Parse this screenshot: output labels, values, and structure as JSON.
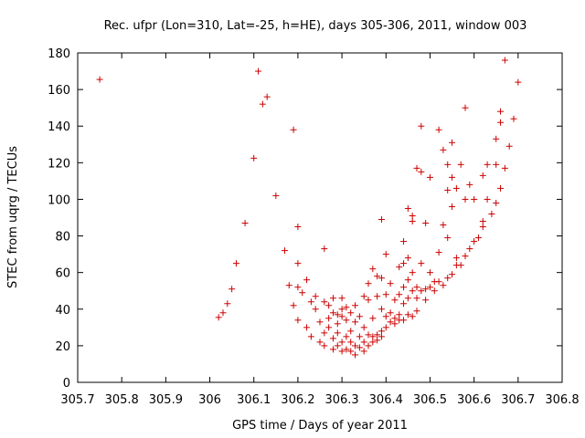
{
  "chart_data": {
    "type": "scatter",
    "title": "Rec. ufpr (Lon=310, Lat=-25, h=HE), days 305-306, 2011, window 003",
    "xlabel": "GPS time / Days of year 2011",
    "ylabel": "STEC from uqrg / TECUs",
    "xlim": [
      305.7,
      306.8
    ],
    "ylim": [
      0,
      180
    ],
    "xticks": [
      "305.7",
      "305.8",
      "305.9",
      "306",
      "306.1",
      "306.2",
      "306.3",
      "306.4",
      "306.5",
      "306.6",
      "306.7",
      "306.8"
    ],
    "yticks": [
      "0",
      "20",
      "40",
      "60",
      "80",
      "100",
      "120",
      "140",
      "160",
      "180"
    ],
    "grid": false,
    "marker": "+",
    "color": "#cc0000",
    "points": [
      [
        305.75,
        165.5
      ],
      [
        306.11,
        170
      ],
      [
        306.12,
        152
      ],
      [
        306.13,
        156
      ],
      [
        306.15,
        102
      ],
      [
        306.1,
        122.5
      ],
      [
        306.08,
        87
      ],
      [
        306.06,
        65
      ],
      [
        306.05,
        51
      ],
      [
        306.04,
        43
      ],
      [
        306.03,
        38
      ],
      [
        306.02,
        35.5
      ],
      [
        306.17,
        72
      ],
      [
        306.18,
        53
      ],
      [
        306.19,
        138
      ],
      [
        306.19,
        42
      ],
      [
        306.2,
        34
      ],
      [
        306.2,
        85
      ],
      [
        306.2,
        65
      ],
      [
        306.2,
        52
      ],
      [
        306.21,
        49
      ],
      [
        306.22,
        56
      ],
      [
        306.22,
        30
      ],
      [
        306.23,
        44
      ],
      [
        306.23,
        25
      ],
      [
        306.24,
        47
      ],
      [
        306.24,
        40
      ],
      [
        306.25,
        33
      ],
      [
        306.25,
        22
      ],
      [
        306.26,
        73
      ],
      [
        306.26,
        44
      ],
      [
        306.26,
        27
      ],
      [
        306.26,
        20
      ],
      [
        306.27,
        42
      ],
      [
        306.27,
        35
      ],
      [
        306.27,
        30
      ],
      [
        306.28,
        46
      ],
      [
        306.28,
        38
      ],
      [
        306.28,
        24
      ],
      [
        306.28,
        18
      ],
      [
        306.29,
        37
      ],
      [
        306.29,
        32
      ],
      [
        306.29,
        27
      ],
      [
        306.29,
        20
      ],
      [
        306.3,
        46
      ],
      [
        306.3,
        40
      ],
      [
        306.3,
        36
      ],
      [
        306.3,
        22
      ],
      [
        306.3,
        17
      ],
      [
        306.31,
        41
      ],
      [
        306.31,
        34
      ],
      [
        306.31,
        25
      ],
      [
        306.31,
        18
      ],
      [
        306.32,
        38
      ],
      [
        306.32,
        28
      ],
      [
        306.32,
        22
      ],
      [
        306.32,
        17
      ],
      [
        306.33,
        42
      ],
      [
        306.33,
        33
      ],
      [
        306.33,
        20
      ],
      [
        306.33,
        15
      ],
      [
        306.34,
        36
      ],
      [
        306.34,
        25
      ],
      [
        306.34,
        19
      ],
      [
        306.35,
        47
      ],
      [
        306.35,
        30
      ],
      [
        306.35,
        22
      ],
      [
        306.35,
        17
      ],
      [
        306.36,
        54
      ],
      [
        306.36,
        45
      ],
      [
        306.36,
        26
      ],
      [
        306.36,
        20
      ],
      [
        306.37,
        62
      ],
      [
        306.37,
        35
      ],
      [
        306.37,
        25
      ],
      [
        306.37,
        22
      ],
      [
        306.38,
        58
      ],
      [
        306.38,
        47
      ],
      [
        306.38,
        26
      ],
      [
        306.38,
        23
      ],
      [
        306.39,
        89
      ],
      [
        306.39,
        57
      ],
      [
        306.39,
        40
      ],
      [
        306.39,
        28
      ],
      [
        306.39,
        25
      ],
      [
        306.4,
        70
      ],
      [
        306.4,
        48
      ],
      [
        306.4,
        36
      ],
      [
        306.4,
        30
      ],
      [
        306.41,
        54
      ],
      [
        306.41,
        38
      ],
      [
        306.41,
        33
      ],
      [
        306.42,
        45
      ],
      [
        306.42,
        35
      ],
      [
        306.42,
        32
      ],
      [
        306.43,
        63
      ],
      [
        306.43,
        48
      ],
      [
        306.43,
        37
      ],
      [
        306.43,
        34
      ],
      [
        306.44,
        77
      ],
      [
        306.44,
        65
      ],
      [
        306.44,
        52
      ],
      [
        306.44,
        43
      ],
      [
        306.44,
        34
      ],
      [
        306.45,
        95
      ],
      [
        306.45,
        68
      ],
      [
        306.45,
        56
      ],
      [
        306.45,
        46
      ],
      [
        306.45,
        37
      ],
      [
        306.46,
        91
      ],
      [
        306.46,
        88
      ],
      [
        306.46,
        60
      ],
      [
        306.46,
        50
      ],
      [
        306.46,
        36
      ],
      [
        306.47,
        117
      ],
      [
        306.47,
        52
      ],
      [
        306.47,
        46
      ],
      [
        306.47,
        39
      ],
      [
        306.48,
        140
      ],
      [
        306.48,
        115
      ],
      [
        306.48,
        65
      ],
      [
        306.48,
        50
      ],
      [
        306.49,
        87
      ],
      [
        306.49,
        51
      ],
      [
        306.49,
        45
      ],
      [
        306.5,
        112
      ],
      [
        306.5,
        60
      ],
      [
        306.5,
        52
      ],
      [
        306.51,
        55
      ],
      [
        306.51,
        50
      ],
      [
        306.52,
        138
      ],
      [
        306.52,
        71
      ],
      [
        306.52,
        55
      ],
      [
        306.53,
        127
      ],
      [
        306.53,
        86
      ],
      [
        306.53,
        53
      ],
      [
        306.54,
        119
      ],
      [
        306.54,
        105
      ],
      [
        306.54,
        79
      ],
      [
        306.54,
        57
      ],
      [
        306.55,
        131
      ],
      [
        306.55,
        112
      ],
      [
        306.55,
        96
      ],
      [
        306.55,
        59
      ],
      [
        306.56,
        106
      ],
      [
        306.56,
        68
      ],
      [
        306.56,
        64
      ],
      [
        306.57,
        119
      ],
      [
        306.57,
        64
      ],
      [
        306.58,
        150
      ],
      [
        306.58,
        100
      ],
      [
        306.58,
        69
      ],
      [
        306.59,
        108
      ],
      [
        306.59,
        73
      ],
      [
        306.6,
        100
      ],
      [
        306.6,
        77
      ],
      [
        306.61,
        79
      ],
      [
        306.62,
        113
      ],
      [
        306.62,
        88
      ],
      [
        306.62,
        85
      ],
      [
        306.63,
        119
      ],
      [
        306.63,
        100
      ],
      [
        306.64,
        92
      ],
      [
        306.65,
        133
      ],
      [
        306.65,
        119
      ],
      [
        306.65,
        98
      ],
      [
        306.66,
        148
      ],
      [
        306.66,
        142
      ],
      [
        306.66,
        106
      ],
      [
        306.67,
        176
      ],
      [
        306.67,
        117
      ],
      [
        306.68,
        129
      ],
      [
        306.69,
        144
      ],
      [
        306.7,
        164
      ]
    ]
  }
}
